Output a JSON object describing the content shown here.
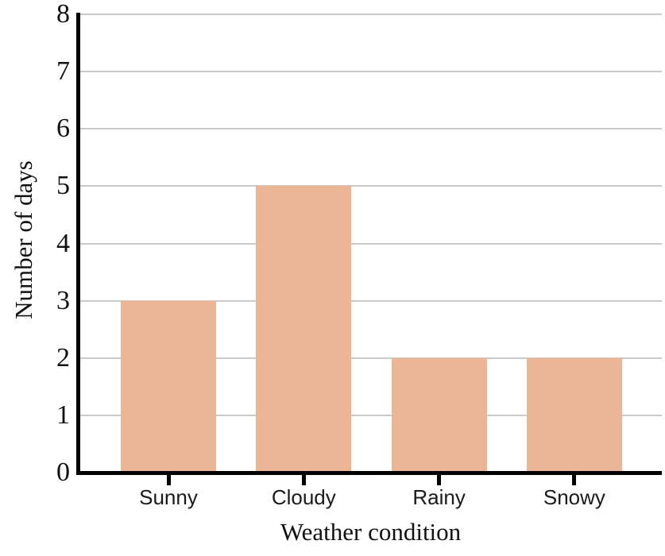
{
  "chart_data": {
    "type": "bar",
    "title": "",
    "categories": [
      "Sunny",
      "Cloudy",
      "Rainy",
      "Snowy"
    ],
    "values": [
      3,
      5,
      2,
      2
    ],
    "xlabel": "Weather condition",
    "ylabel": "Number of days",
    "ylim": [
      0,
      8
    ],
    "yticks": [
      0,
      1,
      2,
      3,
      4,
      5,
      6,
      7,
      8
    ],
    "grid": true,
    "legend": "none",
    "bar_color": "#ecb696",
    "gridline_color": "#c9c9c9",
    "axis_color": "#000000",
    "text_color": "#111111"
  }
}
